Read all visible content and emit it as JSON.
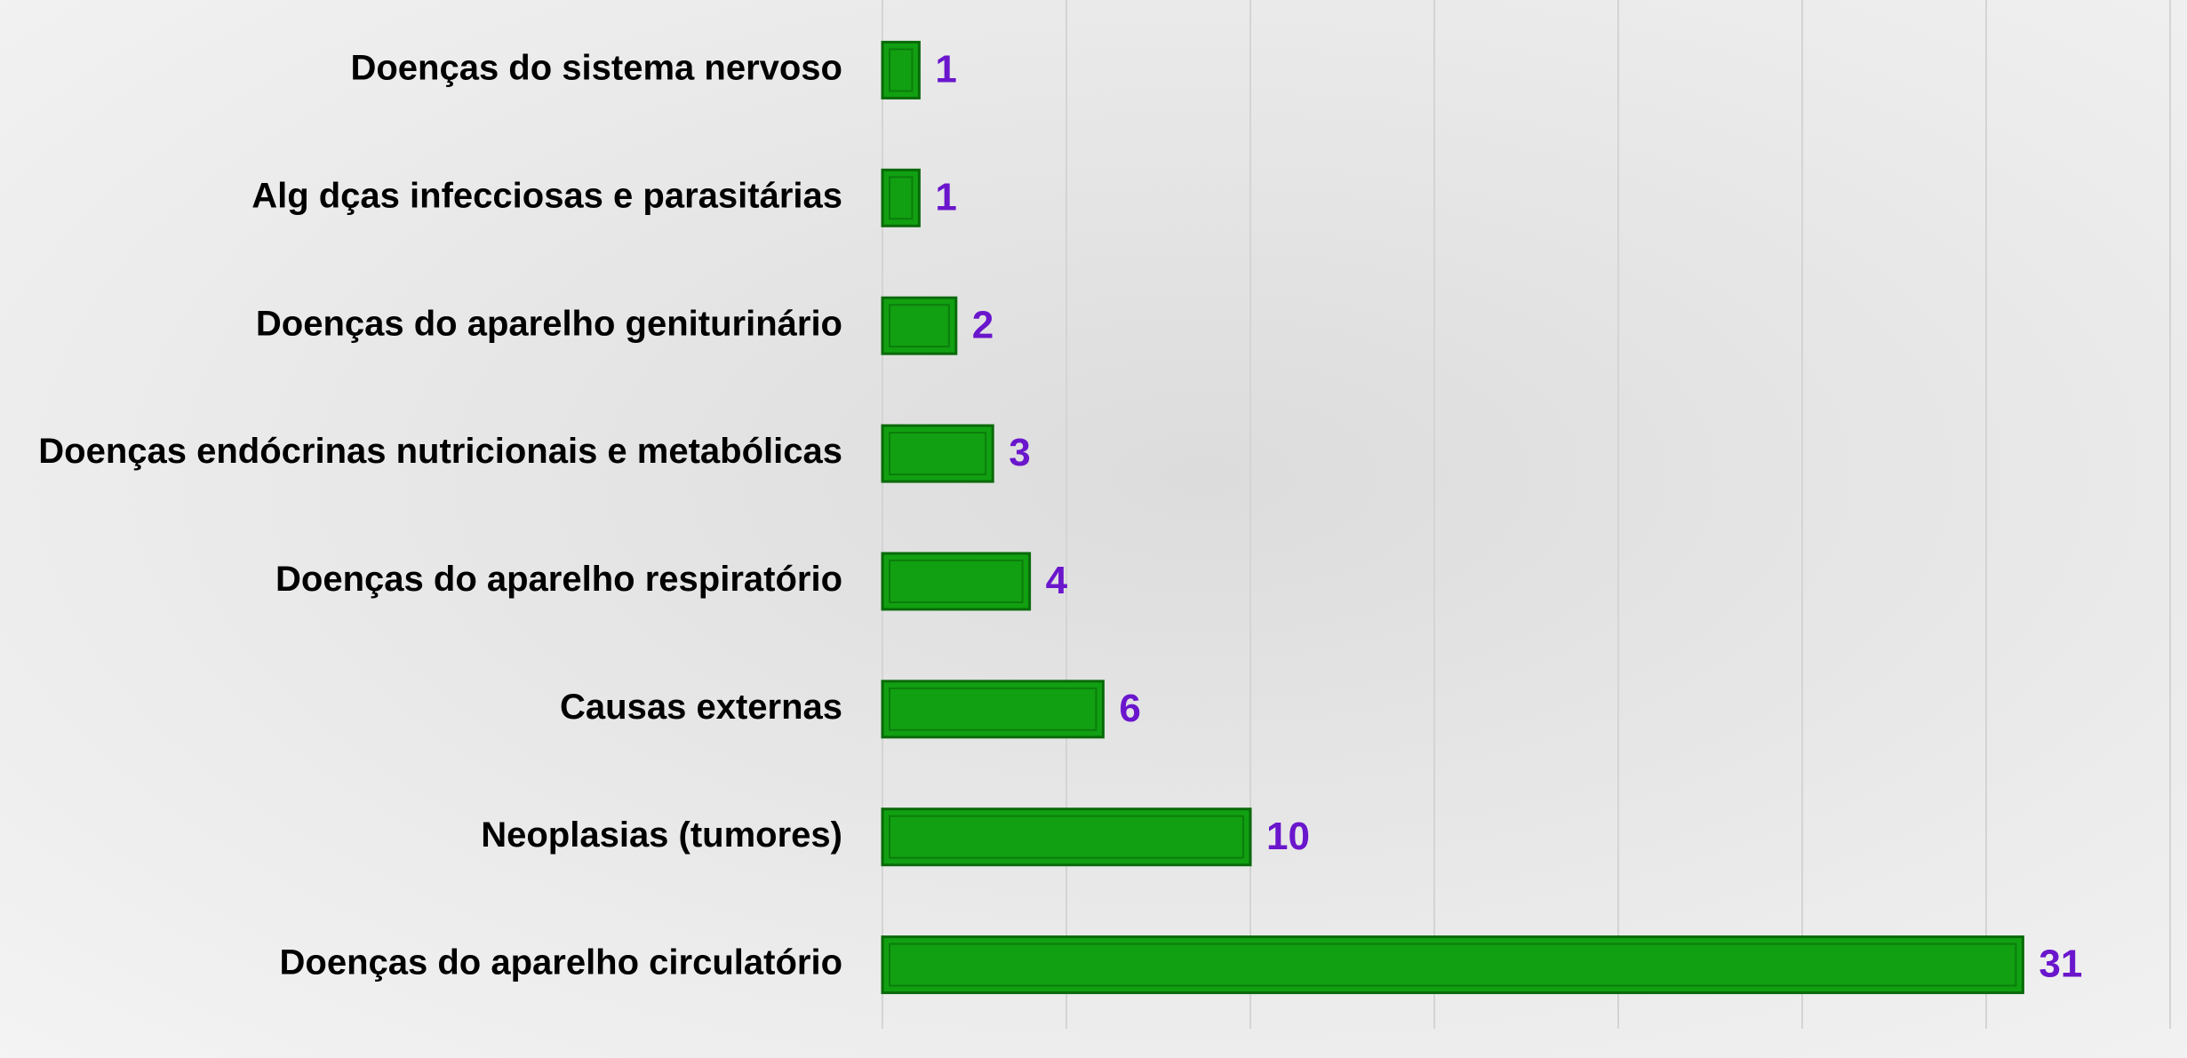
{
  "chart_data": {
    "type": "bar",
    "orientation": "horizontal",
    "categories": [
      "Doenças do sistema nervoso",
      "Alg dças infecciosas e parasitárias",
      "Doenças do aparelho geniturinário",
      "Doenças endócrinas nutricionais e metabólicas",
      "Doenças do aparelho respiratório",
      "Causas externas",
      "Neoplasias (tumores)",
      "Doenças do aparelho circulatório"
    ],
    "values": [
      1,
      1,
      2,
      3,
      4,
      6,
      10,
      31
    ],
    "color": "#11a011",
    "xlim": [
      0,
      35
    ],
    "xticks": [
      0,
      5,
      10,
      15,
      20,
      25,
      30,
      35
    ],
    "grid": true
  }
}
